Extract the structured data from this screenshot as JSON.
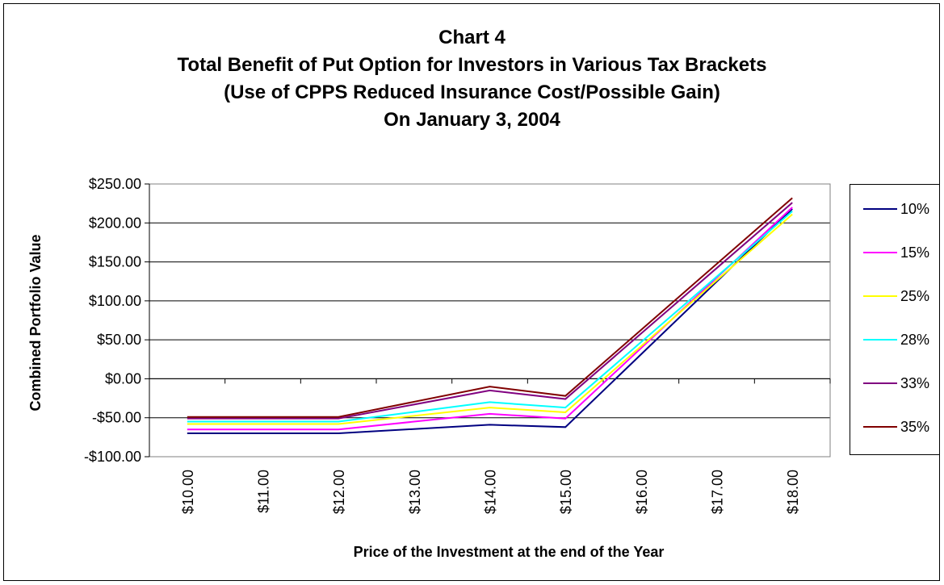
{
  "chart_data": {
    "type": "line",
    "title": [
      "Chart 4",
      "Total Benefit of Put Option for Investors in Various Tax Brackets",
      "(Use of CPPS Reduced Insurance Cost/Possible Gain)",
      "On January 3, 2004"
    ],
    "xlabel": "Price of the Investment at the end of the Year",
    "ylabel": "Combined Portfolio Value",
    "categories": [
      "$10.00",
      "$11.00",
      "$12.00",
      "$13.00",
      "$14.00",
      "$15.00",
      "$16.00",
      "$17.00",
      "$18.00"
    ],
    "ylim": [
      -100,
      250
    ],
    "yticks": [
      250,
      200,
      150,
      100,
      50,
      0,
      -50,
      -100
    ],
    "ytick_labels": [
      "$250.00",
      "$200.00",
      "$150.00",
      "$100.00",
      "$50.00",
      "$0.00",
      "-$50.00",
      "-$100.00"
    ],
    "grid": "horizontal",
    "legend_position": "right",
    "series": [
      {
        "name": "10%",
        "color": "#000080",
        "points": [
          {
            "x": "$10.00",
            "y": -70
          },
          {
            "x": "$12.00",
            "y": -70
          },
          {
            "x": "$14.00",
            "y": -59
          },
          {
            "x": "$15.00",
            "y": -62
          },
          {
            "x": "$18.00",
            "y": 218
          }
        ]
      },
      {
        "name": "15%",
        "color": "#FF00FF",
        "points": [
          {
            "x": "$10.00",
            "y": -65
          },
          {
            "x": "$12.00",
            "y": -65
          },
          {
            "x": "$14.00",
            "y": -45
          },
          {
            "x": "$15.00",
            "y": -51
          },
          {
            "x": "$18.00",
            "y": 220
          }
        ]
      },
      {
        "name": "25%",
        "color": "#FFFF00",
        "points": [
          {
            "x": "$10.00",
            "y": -58
          },
          {
            "x": "$12.00",
            "y": -58
          },
          {
            "x": "$14.00",
            "y": -37
          },
          {
            "x": "$15.00",
            "y": -43
          },
          {
            "x": "$18.00",
            "y": 211
          }
        ]
      },
      {
        "name": "28%",
        "color": "#00FFFF",
        "points": [
          {
            "x": "$10.00",
            "y": -55
          },
          {
            "x": "$12.00",
            "y": -55
          },
          {
            "x": "$14.00",
            "y": -30
          },
          {
            "x": "$15.00",
            "y": -37
          },
          {
            "x": "$18.00",
            "y": 215
          }
        ]
      },
      {
        "name": "33%",
        "color": "#800080",
        "points": [
          {
            "x": "$10.00",
            "y": -51
          },
          {
            "x": "$12.00",
            "y": -51
          },
          {
            "x": "$14.00",
            "y": -15
          },
          {
            "x": "$15.00",
            "y": -26
          },
          {
            "x": "$18.00",
            "y": 226
          }
        ]
      },
      {
        "name": "35%",
        "color": "#800000",
        "points": [
          {
            "x": "$10.00",
            "y": -49
          },
          {
            "x": "$12.00",
            "y": -49
          },
          {
            "x": "$14.00",
            "y": -10
          },
          {
            "x": "$15.00",
            "y": -22
          },
          {
            "x": "$18.00",
            "y": 232
          }
        ]
      }
    ]
  }
}
